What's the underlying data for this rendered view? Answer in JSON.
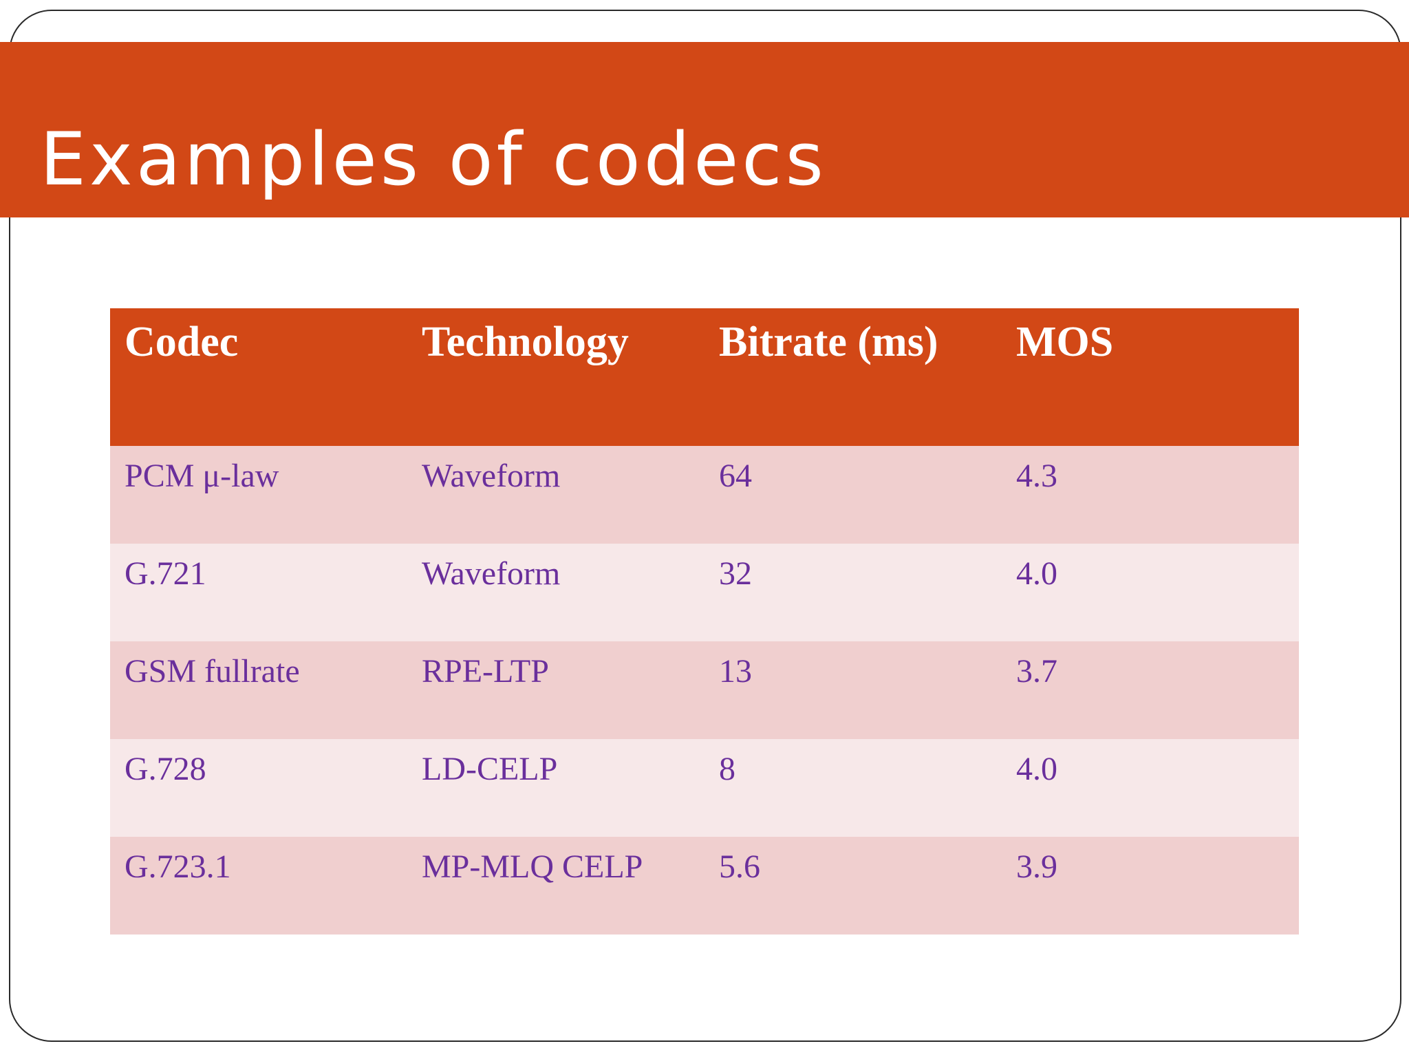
{
  "slide": {
    "title": "Examples of codecs"
  },
  "table": {
    "headers": [
      "Codec",
      "Technology",
      "Bitrate (ms)",
      "MOS"
    ],
    "rows": [
      [
        "PCM μ-law",
        "Waveform",
        "64",
        "4.3"
      ],
      [
        "G.721",
        "Waveform",
        "32",
        "4.0"
      ],
      [
        "GSM fullrate",
        "RPE-LTP",
        "13",
        "3.7"
      ],
      [
        "G.728",
        "LD-CELP",
        "8",
        "4.0"
      ],
      [
        "G.723.1",
        "MP-MLQ CELP",
        "5.6",
        "3.9"
      ]
    ]
  },
  "colors": {
    "accent": "#d24816",
    "row_dark": "#f0cfcf",
    "row_light": "#f7e8e9",
    "cell_text": "#6a2f9c"
  }
}
